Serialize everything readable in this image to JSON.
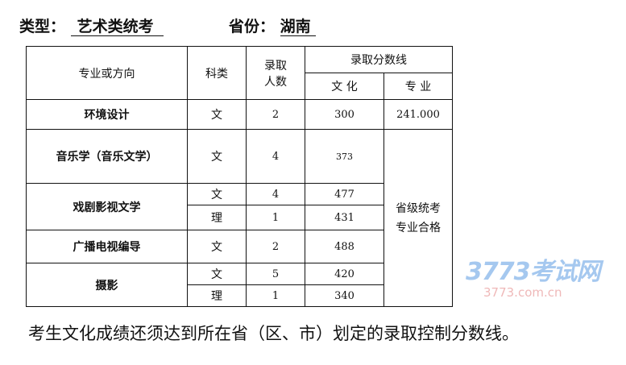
{
  "header": {
    "type_label": "类型：",
    "type_value": "艺术类统考",
    "province_label": "省份：",
    "province_value": "湖南"
  },
  "table": {
    "headers": {
      "major": "专业或方向",
      "category": "科类",
      "admit_count": [
        "录取",
        "人数"
      ],
      "score_line": "录取分数线",
      "culture": "文  化",
      "specialty": "专  业"
    },
    "rows": [
      {
        "major": "环境设计",
        "entries": [
          {
            "category": "文",
            "count": "2",
            "culture": "300"
          }
        ],
        "specialty": "241.000"
      },
      {
        "major": "音乐学（音乐文学）",
        "entries": [
          {
            "category": "文",
            "count": "4",
            "culture": "373"
          }
        ]
      },
      {
        "major": "戏剧影视文学",
        "entries": [
          {
            "category": "文",
            "count": "4",
            "culture": "477"
          },
          {
            "category": "理",
            "count": "1",
            "culture": "431"
          }
        ]
      },
      {
        "major": "广播电视编导",
        "entries": [
          {
            "category": "文",
            "count": "2",
            "culture": "488"
          }
        ]
      },
      {
        "major": "摄影",
        "entries": [
          {
            "category": "文",
            "count": "5",
            "culture": "420"
          },
          {
            "category": "理",
            "count": "1",
            "culture": "340"
          }
        ]
      }
    ],
    "merged_specialty": [
      "省级统考",
      "专业合格"
    ]
  },
  "footer": "考生文化成绩还须达到所在省（区、市）划定的录取控制分数线。",
  "watermark": {
    "logo": "3773考试网",
    "url": "3773.com.cn"
  }
}
